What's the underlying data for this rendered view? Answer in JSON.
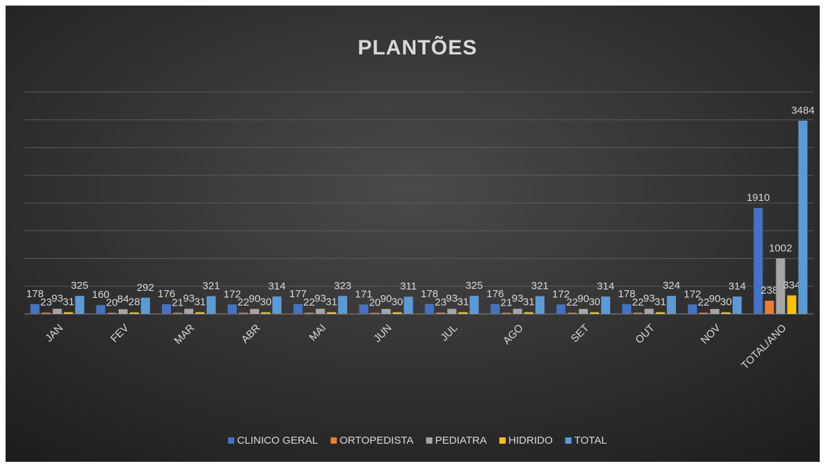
{
  "chart_data": {
    "type": "bar",
    "title": "PLANTÕES",
    "categories": [
      "JAN",
      "FEV",
      "MAR",
      "ABR",
      "MAI",
      "JUN",
      "JUL",
      "AGO",
      "SET",
      "OUT",
      "NOV",
      "TOTAL/ANO"
    ],
    "series": [
      {
        "name": "CLINICO GERAL",
        "color": "#4472c4",
        "values": [
          178,
          160,
          176,
          172,
          177,
          171,
          178,
          176,
          172,
          178,
          172,
          1910
        ]
      },
      {
        "name": "ORTOPEDISTA",
        "color": "#ed7d31",
        "values": [
          23,
          20,
          21,
          22,
          22,
          20,
          23,
          21,
          22,
          22,
          22,
          238
        ]
      },
      {
        "name": "PEDIATRA",
        "color": "#a5a5a5",
        "values": [
          93,
          84,
          93,
          90,
          93,
          90,
          93,
          93,
          90,
          93,
          90,
          1002
        ]
      },
      {
        "name": "HIDRIDO",
        "color": "#ffc000",
        "values": [
          31,
          28,
          31,
          30,
          31,
          30,
          31,
          31,
          30,
          31,
          30,
          334
        ]
      },
      {
        "name": "TOTAL",
        "color": "#5b9bd5",
        "values": [
          325,
          292,
          321,
          314,
          323,
          311,
          325,
          321,
          314,
          324,
          314,
          3484
        ]
      }
    ],
    "ylim": [
      0,
      4000
    ],
    "yticks": [
      0,
      500,
      1000,
      1500,
      2000,
      2500,
      3000,
      3500,
      4000
    ],
    "grid": true,
    "legend": "bottom"
  }
}
